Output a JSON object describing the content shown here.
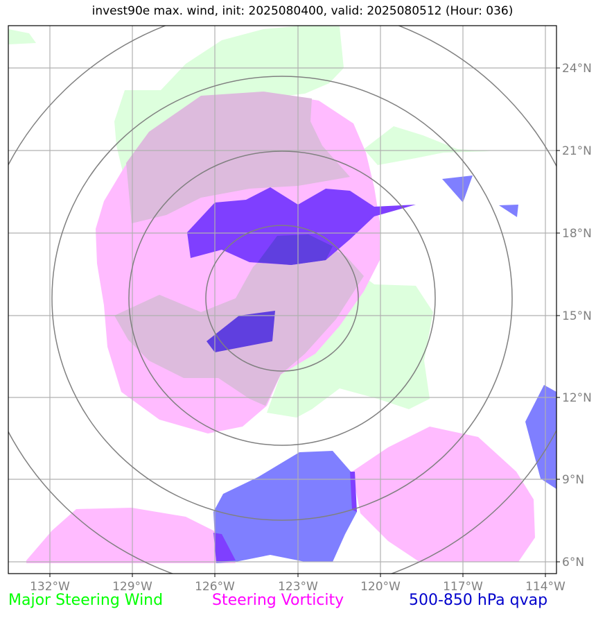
{
  "title": "invest90e max. wind, init: 2025080400, valid: 2025080512 (Hour: 036)",
  "lon_ticks": [
    "132°W",
    "129°W",
    "126°W",
    "123°W",
    "120°W",
    "117°W",
    "114°W"
  ],
  "lat_ticks": [
    "24°N",
    "21°N",
    "18°N",
    "15°N",
    "12°N",
    "9°N",
    "6°N"
  ],
  "legend": [
    {
      "label": "Major Steering Wind",
      "color": "#00ff00"
    },
    {
      "label": "Steering Vorticity",
      "color": "#ff00ff"
    },
    {
      "label": "500-850 hPa qvap",
      "color": "#0000cc"
    }
  ],
  "layer_colors": {
    "steering_wind_fill": "#ddffdd",
    "steering_vorticity_fill": "#ffbbff",
    "overlap_fill": "#ddbbdd",
    "qvap_fill": "#7f7fff",
    "qvap_strong_fill": "#7f3fff",
    "qvap_overlap_fill": "#5f3fdf",
    "range_ring": "#808080",
    "gridline": "#b0b0b0"
  },
  "range_rings": "concentric circles centered near 123.6°W, 15°N"
}
